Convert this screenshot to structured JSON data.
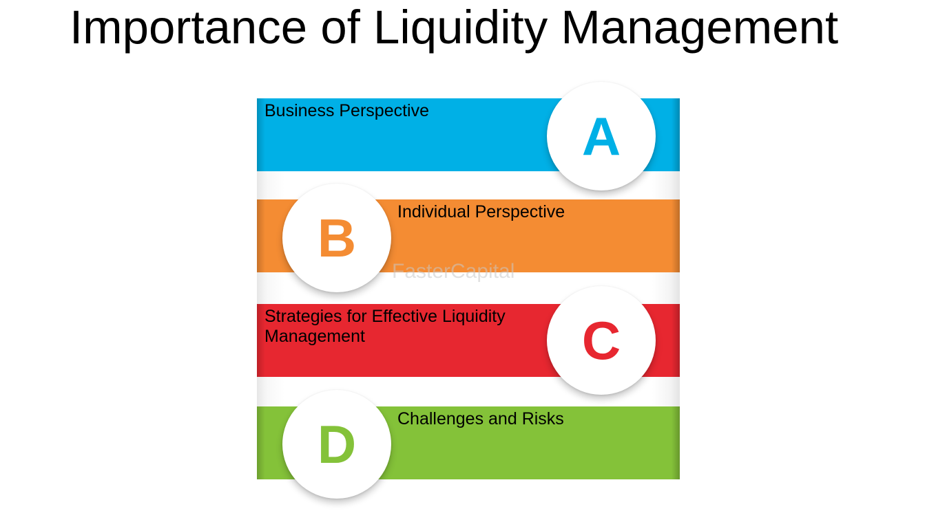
{
  "title": "Importance of Liquidity Management",
  "items": [
    {
      "letter": "A",
      "label": "Business Perspective",
      "color": "#00b0e6"
    },
    {
      "letter": "B",
      "label": "Individual Perspective",
      "color": "#f48c33"
    },
    {
      "letter": "C",
      "label": "Strategies for Effective Liquidity Management",
      "color": "#e72730"
    },
    {
      "letter": "D",
      "label": "Challenges and Risks",
      "color": "#84c239"
    }
  ],
  "watermark": "FasterCapital"
}
